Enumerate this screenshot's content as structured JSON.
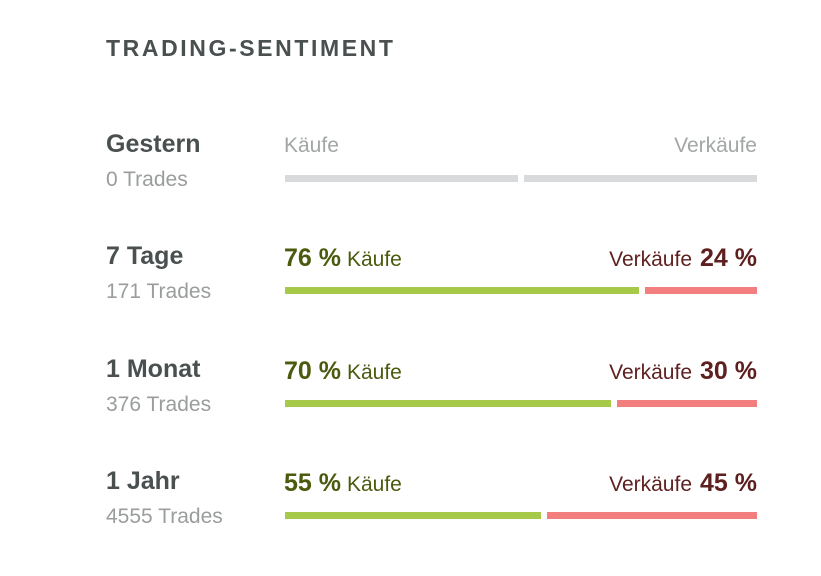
{
  "title": "TRADING-SENTIMENT",
  "rows": [
    {
      "period": "Gestern",
      "trades": "0 Trades",
      "buy_word": "Käufe",
      "sell_word": "Verkäufe",
      "buy_pct": null,
      "sell_pct": null,
      "buy_fraction": 0.5,
      "neutral": true
    },
    {
      "period": "7 Tage",
      "trades": "171 Trades",
      "buy_word": "Käufe",
      "sell_word": "Verkäufe",
      "buy_pct": "76 %",
      "sell_pct": "24 %",
      "buy_fraction": 0.76,
      "neutral": false
    },
    {
      "period": "1 Monat",
      "trades": "376 Trades",
      "buy_word": "Käufe",
      "sell_word": "Verkäufe",
      "buy_pct": "70 %",
      "sell_pct": "30 %",
      "buy_fraction": 0.7,
      "neutral": false
    },
    {
      "period": "1 Jahr",
      "trades": "4555 Trades",
      "buy_word": "Käufe",
      "sell_word": "Verkäufe",
      "buy_pct": "55 %",
      "sell_pct": "45 %",
      "buy_fraction": 0.55,
      "neutral": false
    }
  ],
  "colors": {
    "buy_bar": "#a6c94a",
    "sell_bar": "#f27e7e",
    "neutral_bar": "#d8dadb",
    "buy_text": "#4a5a0e",
    "sell_text": "#5e1f1f"
  }
}
